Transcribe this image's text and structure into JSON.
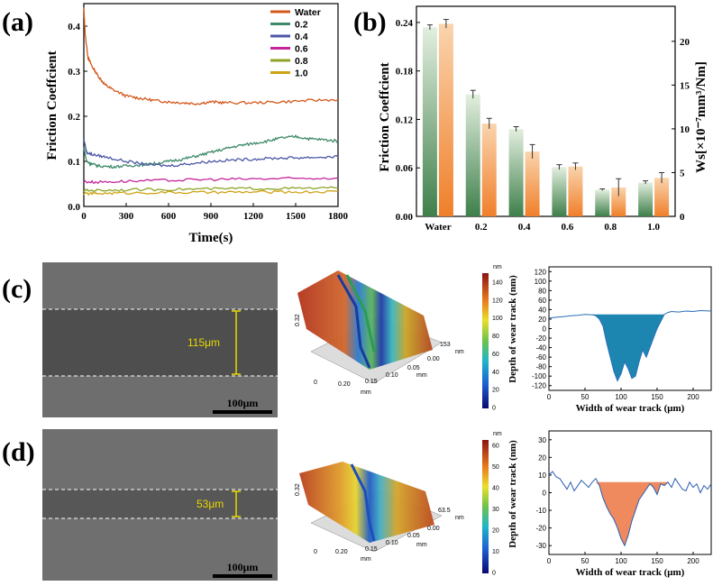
{
  "panels": {
    "a": "(a)",
    "b": "(b)",
    "c": "(c)",
    "d": "(d)"
  },
  "chart_data": [
    {
      "type": "line",
      "panel": "a",
      "xlabel": "Time(s)",
      "ylabel": "Friction Coefficient",
      "ylabel_display": "Friction Coeffcient",
      "xlim": [
        0,
        1800
      ],
      "ylim": [
        0,
        0.45
      ],
      "xticks": [
        "0",
        "300",
        "600",
        "900",
        "1200",
        "1500",
        "1800"
      ],
      "yticks": [
        "0.0",
        "0.1",
        "0.2",
        "0.3",
        "0.4"
      ],
      "series": [
        {
          "name": "Water",
          "color": "#d4581b",
          "x": [
            0,
            10,
            30,
            60,
            100,
            150,
            200,
            300,
            400,
            500,
            600,
            700,
            800,
            900,
            1000,
            1200,
            1400,
            1600,
            1800
          ],
          "y": [
            0.44,
            0.38,
            0.33,
            0.31,
            0.29,
            0.27,
            0.26,
            0.245,
            0.24,
            0.235,
            0.232,
            0.23,
            0.228,
            0.232,
            0.23,
            0.23,
            0.232,
            0.235,
            0.237
          ]
        },
        {
          "name": "0.2",
          "color": "#3f8a6a",
          "x": [
            0,
            20,
            50,
            100,
            200,
            300,
            400,
            500,
            600,
            700,
            800,
            900,
            1000,
            1100,
            1200,
            1300,
            1400,
            1500,
            1600,
            1700,
            1800
          ],
          "y": [
            0.13,
            0.1,
            0.095,
            0.09,
            0.088,
            0.09,
            0.092,
            0.095,
            0.1,
            0.105,
            0.112,
            0.12,
            0.128,
            0.135,
            0.14,
            0.145,
            0.152,
            0.155,
            0.15,
            0.148,
            0.145
          ]
        },
        {
          "name": "0.4",
          "color": "#4b57a4",
          "x": [
            0,
            20,
            60,
            150,
            300,
            450,
            600,
            750,
            900,
            1050,
            1200,
            1350,
            1500,
            1650,
            1800
          ],
          "y": [
            0.15,
            0.12,
            0.115,
            0.11,
            0.1,
            0.093,
            0.09,
            0.095,
            0.1,
            0.103,
            0.105,
            0.107,
            0.108,
            0.109,
            0.11
          ]
        },
        {
          "name": "0.6",
          "color": "#c4259a",
          "x": [
            0,
            100,
            300,
            600,
            900,
            1200,
            1500,
            1800
          ],
          "y": [
            0.055,
            0.054,
            0.056,
            0.058,
            0.06,
            0.061,
            0.062,
            0.063
          ]
        },
        {
          "name": "0.8",
          "color": "#8da426",
          "x": [
            0,
            100,
            300,
            600,
            900,
            1200,
            1500,
            1800
          ],
          "y": [
            0.035,
            0.036,
            0.037,
            0.038,
            0.039,
            0.04,
            0.04,
            0.041
          ]
        },
        {
          "name": "1.0",
          "color": "#cfa313",
          "x": [
            0,
            100,
            300,
            600,
            900,
            1200,
            1500,
            1800
          ],
          "y": [
            0.028,
            0.029,
            0.03,
            0.031,
            0.031,
            0.032,
            0.032,
            0.033
          ]
        }
      ]
    },
    {
      "type": "bar",
      "panel": "b",
      "categories": [
        "Water",
        "0.2",
        "0.4",
        "0.6",
        "0.8",
        "1.0"
      ],
      "ylabel": "Friction Coefficient",
      "ylabel_display": "Friction Coeffcient",
      "ylabel_right": "Ws[×10⁻⁷mm³/Nm]",
      "ylim": [
        0,
        0.26
      ],
      "ylim_right": [
        0,
        24
      ],
      "yticks": [
        "0.00",
        "0.06",
        "0.12",
        "0.18",
        "0.24"
      ],
      "yticks_right": [
        "0",
        "5",
        "10",
        "15",
        "20"
      ],
      "series": [
        {
          "name": "Friction Coefficient",
          "axis": "left",
          "color": "#4e8a57",
          "values": [
            0.234,
            0.151,
            0.108,
            0.061,
            0.033,
            0.042
          ],
          "errors": [
            0.003,
            0.005,
            0.003,
            0.003,
            0.001,
            0.002
          ]
        },
        {
          "name": "Ws",
          "axis": "right",
          "color": "#f08a3c",
          "values": [
            22.0,
            10.6,
            7.4,
            5.7,
            3.3,
            4.4
          ],
          "errors": [
            0.5,
            0.6,
            0.8,
            0.4,
            1.0,
            0.6
          ]
        }
      ]
    },
    {
      "type": "area",
      "panel": "c",
      "xlabel": "Width of wear track (μm)",
      "ylabel": "Depth of wear track (nm)",
      "xlim": [
        0,
        225
      ],
      "ylim": [
        -130,
        130
      ],
      "xticks": [
        "0",
        "50",
        "100",
        "150",
        "200"
      ],
      "yticks": [
        "120",
        "100",
        "80",
        "60",
        "40",
        "20",
        "0",
        "-20",
        "-40",
        "-60",
        "-80",
        "-100",
        "-120"
      ],
      "fill_color": "#1d86b0",
      "x": [
        0,
        10,
        20,
        30,
        40,
        50,
        60,
        65,
        70,
        75,
        80,
        85,
        90,
        95,
        100,
        105,
        110,
        115,
        120,
        125,
        130,
        135,
        140,
        145,
        150,
        155,
        160,
        165,
        170,
        180,
        190,
        200,
        210,
        225
      ],
      "y": [
        22,
        24,
        25,
        27,
        28,
        30,
        29,
        27,
        20,
        5,
        -30,
        -60,
        -90,
        -110,
        -95,
        -70,
        -85,
        -105,
        -100,
        -70,
        -45,
        -60,
        -40,
        -20,
        0,
        15,
        30,
        34,
        36,
        35,
        37,
        36,
        38,
        37
      ]
    },
    {
      "type": "area",
      "panel": "d",
      "xlabel": "Width of wear track (μm)",
      "ylabel": "Depth of wear track (nm)",
      "xlim": [
        0,
        225
      ],
      "ylim": [
        -35,
        35
      ],
      "xticks": [
        "0",
        "50",
        "100",
        "150",
        "200"
      ],
      "yticks": [
        "30",
        "20",
        "10",
        "0",
        "-10",
        "-20",
        "-30"
      ],
      "fill_color": "#ee8a5e",
      "x": [
        0,
        5,
        10,
        15,
        20,
        25,
        30,
        35,
        40,
        45,
        50,
        55,
        60,
        65,
        70,
        75,
        80,
        85,
        90,
        95,
        100,
        105,
        110,
        115,
        120,
        125,
        130,
        135,
        140,
        145,
        150,
        155,
        160,
        165,
        170,
        175,
        180,
        185,
        190,
        195,
        200,
        205,
        210,
        215,
        220,
        225
      ],
      "y": [
        10,
        12,
        9,
        8,
        5,
        2,
        6,
        1,
        4,
        7,
        5,
        3,
        6,
        8,
        4,
        -3,
        -8,
        -12,
        -15,
        -20,
        -26,
        -30,
        -24,
        -16,
        -10,
        -4,
        -1,
        2,
        5,
        3,
        -1,
        5,
        4,
        6,
        3,
        8,
        5,
        2,
        1,
        6,
        3,
        5,
        0,
        4,
        2,
        5
      ]
    }
  ],
  "sem": {
    "c": {
      "width_label": "115μm",
      "scale": "100μm"
    },
    "d": {
      "width_label": "53μm",
      "scale": "100μm"
    }
  },
  "afm": {
    "c": {
      "axis_a": "0.32",
      "axis_b1": "0.20",
      "axis_b2": "0.15",
      "axis_b3": "0.10",
      "axis_b4": "0.05",
      "axis_b5": "0.00",
      "zero": "0",
      "mm1": "mm",
      "mm2": "mm",
      "top": "153",
      "nm": "nm",
      "colorbar_unit": "nm",
      "colorbar_ticks": [
        "140",
        "120",
        "100",
        "80",
        "60",
        "40",
        "20",
        "0"
      ]
    },
    "d": {
      "axis_a": "0.32",
      "axis_b1": "0.20",
      "axis_b2": "0.15",
      "axis_b3": "0.10",
      "axis_b4": "0.05",
      "axis_b5": "0.00",
      "zero": "0",
      "mm1": "mm",
      "mm2": "mm",
      "top": "63.5",
      "nm": "nm",
      "colorbar_unit": "nm",
      "colorbar_ticks": [
        "60",
        "50",
        "40",
        "30",
        "20",
        "10",
        "0"
      ]
    }
  },
  "colors": {
    "axis": "#000000",
    "twin_axis": "#a07a52",
    "sem_bg": "#6d6d6d",
    "sem_band_c": "#4f4f4f",
    "sem_band_d": "#565656",
    "dash": "#ffffff",
    "marker": "#e8d800"
  }
}
